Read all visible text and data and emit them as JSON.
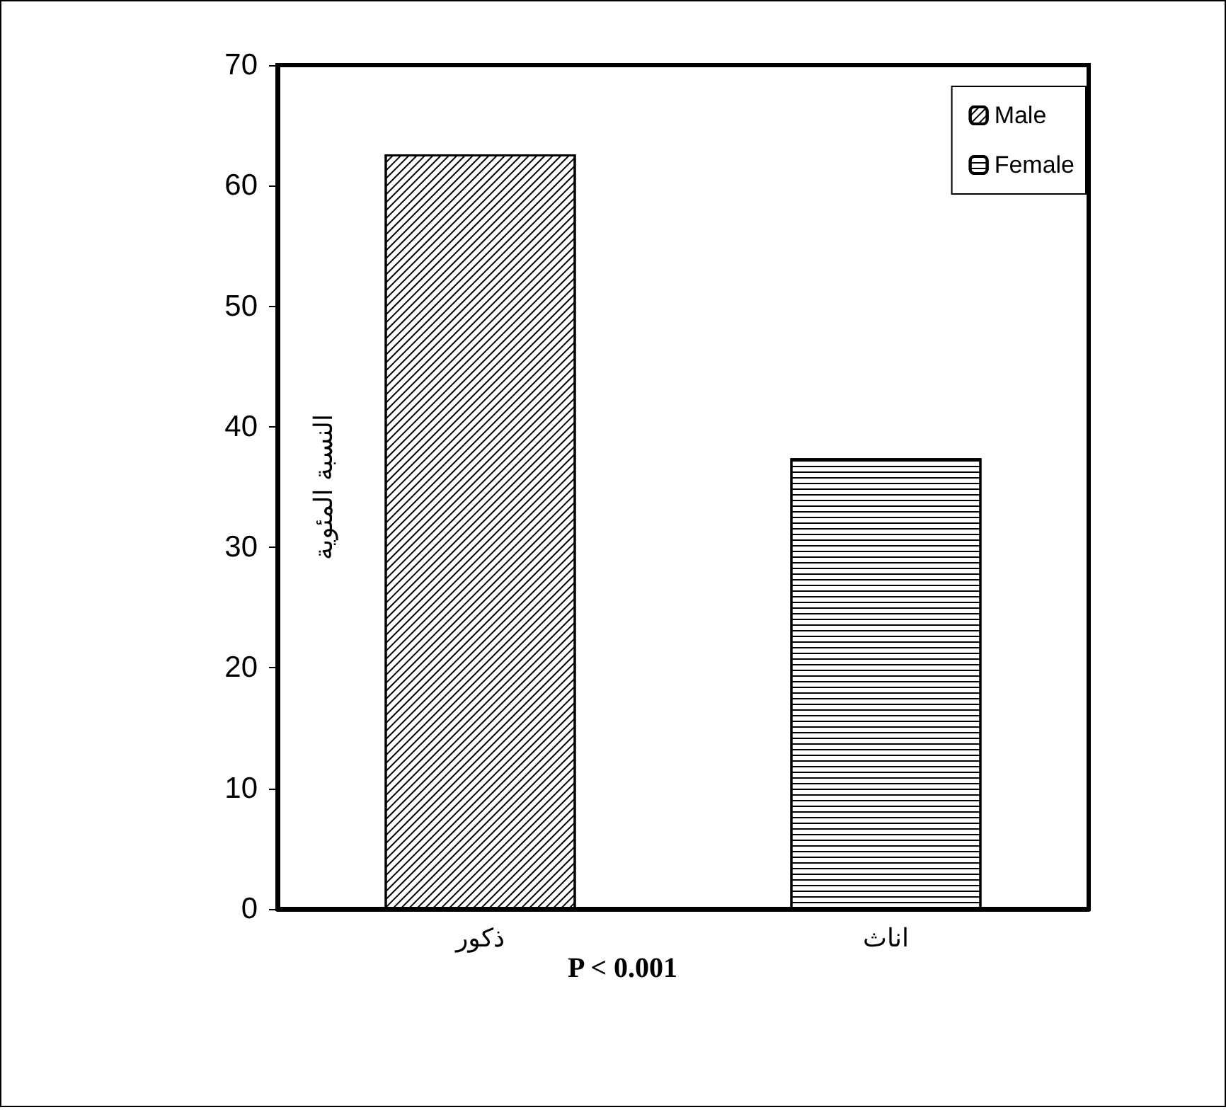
{
  "chart_data": {
    "type": "bar",
    "ylabel": "النسبة المئوية",
    "categories": [
      "ذكور",
      "اناث"
    ],
    "series": [
      {
        "name": "Male",
        "color": "#ffffff",
        "values": [
          62.6,
          null
        ]
      },
      {
        "name": "Female",
        "color": "#ffffff",
        "values": [
          null,
          37.4
        ]
      }
    ],
    "ylim": [
      0,
      70
    ],
    "yticks": [
      0,
      10,
      20,
      30,
      40,
      50,
      60,
      70
    ],
    "grid": false,
    "legend": "top right",
    "annotations": [
      "P < 0.001"
    ]
  }
}
